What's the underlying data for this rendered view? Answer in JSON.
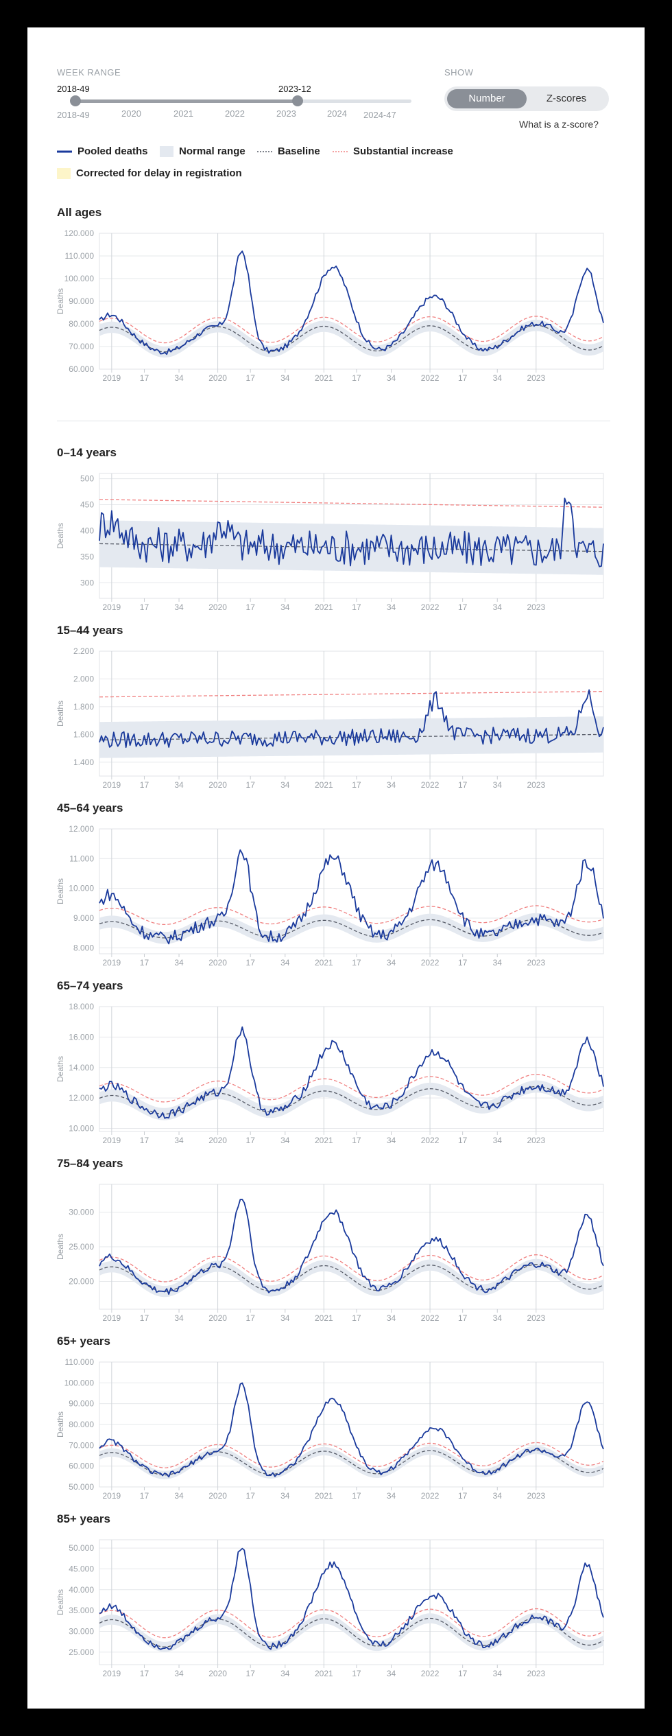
{
  "controls": {
    "week_range_label": "WEEK RANGE",
    "range_start": "2018-49",
    "range_end": "2023-12",
    "axis_years": [
      "2018-49",
      "2020",
      "2021",
      "2022",
      "2023",
      "2024",
      "2024-47"
    ],
    "show_label": "SHOW",
    "toggle": {
      "number": "Number",
      "zscores": "Z-scores",
      "active": "Number"
    },
    "zscore_link": "What is a z-score?"
  },
  "legend": {
    "pooled": "Pooled deaths",
    "normal": "Normal range",
    "baseline": "Baseline",
    "increase": "Substantial increase",
    "corrected": "Corrected for delay in registration"
  },
  "colors": {
    "pooled": "#1a3a9c",
    "normal": "#e4e9f0",
    "baseline": "#555a66",
    "increase": "#f08080",
    "corrected": "#fdf5c9"
  },
  "chart_data": [
    {
      "type": "line",
      "title": "All ages",
      "ylabel": "Deaths",
      "ylim": [
        60000,
        120000
      ],
      "yticks": [
        60000,
        70000,
        80000,
        90000,
        100000,
        110000,
        120000
      ],
      "tick_labels": [
        "60.000",
        "70.000",
        "80.000",
        "90.000",
        "100.000",
        "110.000",
        "120.000"
      ],
      "xticks": [
        "2019",
        "17",
        "34",
        "2020",
        "17",
        "34",
        "2021",
        "17",
        "34",
        "2022",
        "17",
        "34",
        "2023"
      ],
      "baseline": {
        "mean": 73000,
        "amp": 5500,
        "trend": 1000
      },
      "band": 2500,
      "increase_offset": 4000,
      "peaks": [
        [
          5,
          84000
        ],
        [
          70,
          112000
        ],
        [
          115,
          105000
        ],
        [
          165,
          92000
        ],
        [
          220,
          79000
        ],
        [
          239,
          104000
        ]
      ],
      "peak_widths": [
        6,
        4,
        8,
        9,
        9,
        5
      ],
      "noise": 1200
    },
    {
      "type": "line",
      "title": "0–14 years",
      "ylabel": "Deaths",
      "ylim": [
        270,
        510
      ],
      "yticks": [
        300,
        350,
        400,
        450,
        500
      ],
      "tick_labels": [
        "300",
        "350",
        "400",
        "450",
        "500"
      ],
      "xticks": [
        "2019",
        "17",
        "34",
        "2020",
        "17",
        "34",
        "2021",
        "17",
        "34",
        "2022",
        "17",
        "34",
        "2023"
      ],
      "baseline": {
        "mean": 375,
        "amp": 0,
        "trend": -15
      },
      "band": 45,
      "increase_offset": 85,
      "peaks": [
        [
          5,
          420
        ],
        [
          60,
          410
        ],
        [
          230,
          480
        ]
      ],
      "peak_widths": [
        6,
        4,
        2
      ],
      "noise": 35
    },
    {
      "type": "line",
      "title": "15–44 years",
      "ylabel": "Deaths",
      "ylim": [
        1300,
        2200
      ],
      "yticks": [
        1400,
        1600,
        1800,
        2000,
        2200
      ],
      "tick_labels": [
        "1.400",
        "1.600",
        "1.800",
        "2.000",
        "2.200"
      ],
      "xticks": [
        "2019",
        "17",
        "34",
        "2020",
        "17",
        "34",
        "2021",
        "17",
        "34",
        "2022",
        "17",
        "34",
        "2023"
      ],
      "baseline": {
        "mean": 1560,
        "amp": 0,
        "trend": 40
      },
      "band": 130,
      "increase_offset": 310,
      "peaks": [
        [
          165,
          1850
        ],
        [
          239,
          1890
        ]
      ],
      "peak_widths": [
        4,
        3
      ],
      "noise": 60
    },
    {
      "type": "line",
      "title": "45–64 years",
      "ylabel": "Deaths",
      "ylim": [
        7800,
        12000
      ],
      "yticks": [
        8000,
        9000,
        10000,
        11000,
        12000
      ],
      "tick_labels": [
        "8.000",
        "9.000",
        "10.000",
        "11.000",
        "12.000"
      ],
      "xticks": [
        "2019",
        "17",
        "34",
        "2020",
        "17",
        "34",
        "2021",
        "17",
        "34",
        "2022",
        "17",
        "34",
        "2023"
      ],
      "baseline": {
        "mean": 8600,
        "amp": 280,
        "trend": 100
      },
      "band": 200,
      "increase_offset": 450,
      "peaks": [
        [
          5,
          9800
        ],
        [
          70,
          11300
        ],
        [
          115,
          11000
        ],
        [
          165,
          10800
        ],
        [
          239,
          10900
        ]
      ],
      "peak_widths": [
        6,
        4,
        8,
        8,
        5
      ],
      "noise": 220
    },
    {
      "type": "line",
      "title": "65–74 years",
      "ylabel": "Deaths",
      "ylim": [
        9800,
        18000
      ],
      "yticks": [
        10000,
        12000,
        14000,
        16000,
        18000
      ],
      "tick_labels": [
        "10.000",
        "12.000",
        "14.000",
        "16.000",
        "18.000"
      ],
      "xticks": [
        "2019",
        "17",
        "34",
        "2020",
        "17",
        "34",
        "2021",
        "17",
        "34",
        "2022",
        "17",
        "34",
        "2023"
      ],
      "baseline": {
        "mean": 11500,
        "amp": 650,
        "trend": 700
      },
      "band": 400,
      "increase_offset": 800,
      "peaks": [
        [
          5,
          12800
        ],
        [
          70,
          16500
        ],
        [
          115,
          15500
        ],
        [
          165,
          15000
        ],
        [
          239,
          15800
        ]
      ],
      "peak_widths": [
        6,
        4,
        8,
        9,
        5
      ],
      "noise": 300
    },
    {
      "type": "line",
      "title": "75–84 years",
      "ylabel": "Deaths",
      "ylim": [
        16000,
        34000
      ],
      "yticks": [
        20000,
        25000,
        30000
      ],
      "tick_labels": [
        "20.000",
        "25.000",
        "30.000"
      ],
      "xticks": [
        "2019",
        "17",
        "34",
        "2020",
        "17",
        "34",
        "2021",
        "17",
        "34",
        "2022",
        "17",
        "34",
        "2023"
      ],
      "baseline": {
        "mean": 20300,
        "amp": 1800,
        "trend": 400
      },
      "band": 800,
      "increase_offset": 1400,
      "peaks": [
        [
          5,
          23500
        ],
        [
          70,
          32000
        ],
        [
          115,
          30000
        ],
        [
          165,
          26000
        ],
        [
          239,
          29500
        ]
      ],
      "peak_widths": [
        6,
        4,
        8,
        9,
        5
      ],
      "noise": 500
    },
    {
      "type": "line",
      "title": "65+ years",
      "ylabel": "Deaths",
      "ylim": [
        50000,
        110000
      ],
      "yticks": [
        50000,
        60000,
        70000,
        80000,
        90000,
        100000,
        110000
      ],
      "tick_labels": [
        "50.000",
        "60.000",
        "70.000",
        "80.000",
        "90.000",
        "100.000",
        "110.000"
      ],
      "xticks": [
        "2019",
        "17",
        "34",
        "2020",
        "17",
        "34",
        "2021",
        "17",
        "34",
        "2022",
        "17",
        "34",
        "2023"
      ],
      "baseline": {
        "mean": 61000,
        "amp": 5500,
        "trend": 1500
      },
      "band": 2000,
      "increase_offset": 3500,
      "peaks": [
        [
          5,
          72000
        ],
        [
          70,
          99000
        ],
        [
          115,
          92000
        ],
        [
          165,
          78000
        ],
        [
          239,
          91000
        ]
      ],
      "peak_widths": [
        6,
        4,
        8,
        9,
        5
      ],
      "noise": 1200
    },
    {
      "type": "line",
      "title": "85+ years",
      "ylabel": "Deaths",
      "ylim": [
        22000,
        52000
      ],
      "yticks": [
        25000,
        30000,
        35000,
        40000,
        45000,
        50000
      ],
      "tick_labels": [
        "25.000",
        "30.000",
        "35.000",
        "40.000",
        "45.000",
        "50.000"
      ],
      "xticks": [
        "2019",
        "17",
        "34",
        "2020",
        "17",
        "34",
        "2021",
        "17",
        "34",
        "2022",
        "17",
        "34",
        "2023"
      ],
      "baseline": {
        "mean": 29500,
        "amp": 3300,
        "trend": 500
      },
      "band": 1200,
      "increase_offset": 2200,
      "peaks": [
        [
          5,
          36000
        ],
        [
          70,
          50000
        ],
        [
          115,
          46000
        ],
        [
          165,
          38500
        ],
        [
          239,
          46000
        ]
      ],
      "peak_widths": [
        6,
        4,
        8,
        9,
        5
      ],
      "noise": 800
    }
  ]
}
